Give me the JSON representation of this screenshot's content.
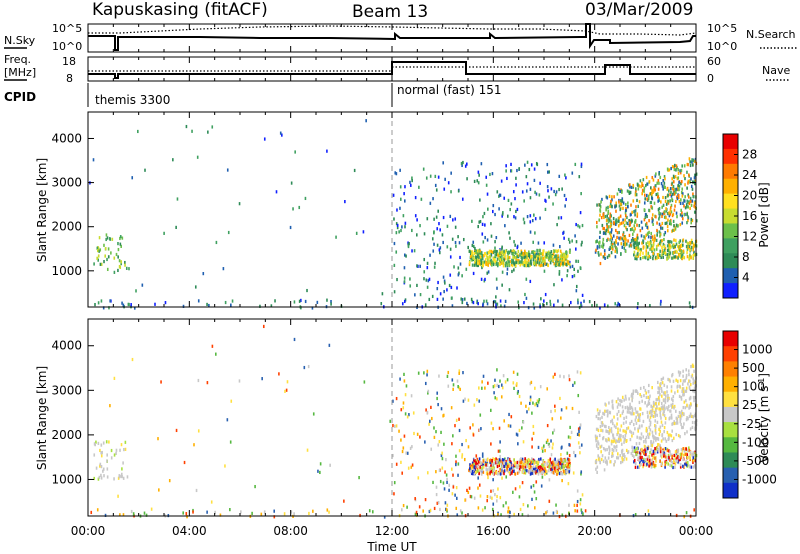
{
  "header": {
    "station": "Kapuskasing (fitACF)",
    "beam": "Beam 13",
    "date": "03/Mar/2009"
  },
  "noise_panel": {
    "left_label": "N.Sky",
    "right_label": "N.Search",
    "left_ticks": [
      "10^5",
      "10^0"
    ],
    "right_ticks": [
      "10^5",
      "10^0"
    ]
  },
  "freq_panel": {
    "left_label_line1": "Freq.",
    "left_label_line2": "[MHz]",
    "right_label": "Nave",
    "left_ticks": [
      "18",
      "8"
    ],
    "right_ticks": [
      "60",
      "0"
    ]
  },
  "cpid": {
    "label": "CPID",
    "modes": [
      {
        "name": "themis 3300",
        "start_hour": 0
      },
      {
        "name": "normal (fast) 151",
        "start_hour": 12
      }
    ]
  },
  "x_axis": {
    "label": "Time UT",
    "ticks": [
      "00:00",
      "04:00",
      "08:00",
      "12:00",
      "16:00",
      "20:00",
      "00:00"
    ],
    "range_hours": [
      0,
      24
    ]
  },
  "chart_data": [
    {
      "type": "heatmap",
      "name": "power",
      "ylabel": "Slant Range [km]",
      "yticks": [
        1000,
        2000,
        3000,
        4000
      ],
      "ylim": [
        180,
        4600
      ],
      "xlim": [
        0,
        24
      ],
      "colorbar_label": "Power [dB]",
      "colorbar_ticks": [
        "28",
        "24",
        "20",
        "16",
        "12",
        "8",
        "4"
      ],
      "colorbar_colors": [
        "#1020ff",
        "#1f5fb0",
        "#2e8b57",
        "#3fa060",
        "#6cc04a",
        "#c8dc30",
        "#ffe020",
        "#ffb000",
        "#ff7a00",
        "#ff3000",
        "#e80000"
      ]
    },
    {
      "type": "heatmap",
      "name": "velocity",
      "ylabel": "Slant Range [km]",
      "yticks": [
        1000,
        2000,
        3000,
        4000
      ],
      "ylim": [
        180,
        4600
      ],
      "xlim": [
        0,
        24
      ],
      "colorbar_label_main": "Velocity",
      "colorbar_label_unit": "[m s",
      "colorbar_label_sup": "-1",
      "colorbar_label_close": "]",
      "colorbar_ticks": [
        "1000",
        "500",
        "100",
        "25",
        "-25",
        "-100",
        "-500",
        "-1000"
      ],
      "colorbar_colors": [
        "#1030c8",
        "#2860b0",
        "#2e8b57",
        "#55b840",
        "#a8e040",
        "#c8c8c8",
        "#ffe040",
        "#ffb000",
        "#ff8000",
        "#ff4000",
        "#e80000"
      ]
    }
  ]
}
